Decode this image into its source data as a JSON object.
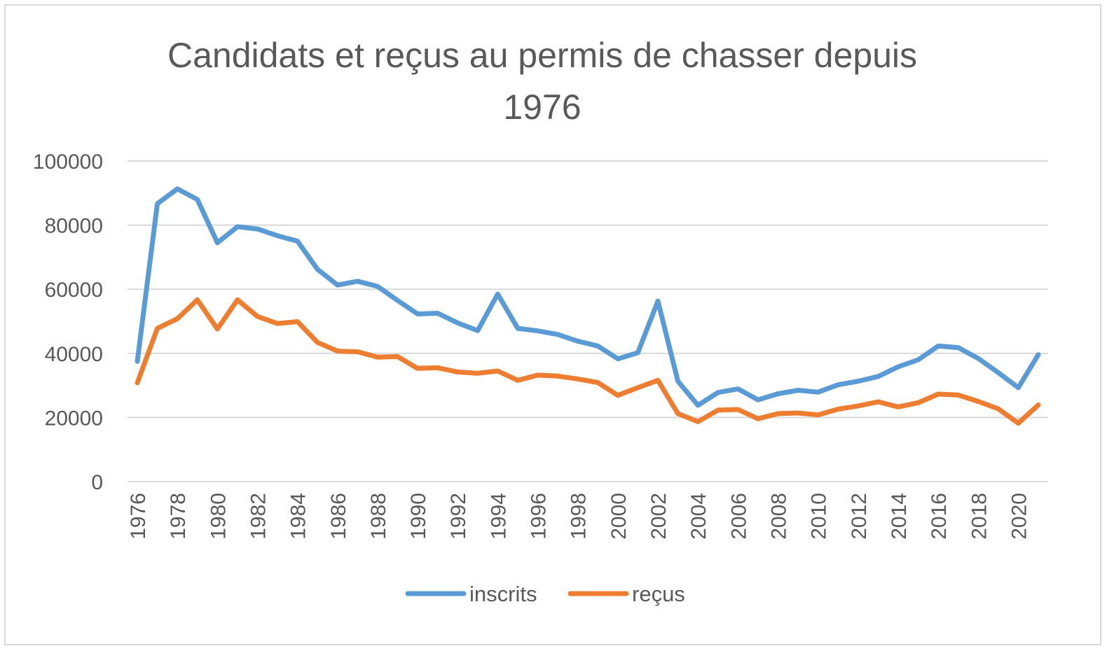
{
  "chart_data": {
    "type": "line",
    "title_lines": [
      "Candidats et reçus au permis de chasser depuis",
      "1976"
    ],
    "xlabel": "",
    "ylabel": "",
    "ylim": [
      0,
      100000
    ],
    "yticks": [
      0,
      20000,
      40000,
      60000,
      80000,
      100000
    ],
    "ytick_labels": [
      "0",
      "20000",
      "40000",
      "60000",
      "80000",
      "100000"
    ],
    "grid": true,
    "legend_position": "bottom",
    "x": [
      1976,
      1977,
      1978,
      1979,
      1980,
      1981,
      1982,
      1983,
      1984,
      1985,
      1986,
      1987,
      1988,
      1989,
      1990,
      1991,
      1992,
      1993,
      1994,
      1995,
      1996,
      1997,
      1998,
      1999,
      2000,
      2001,
      2002,
      2003,
      2004,
      2005,
      2006,
      2007,
      2008,
      2009,
      2010,
      2011,
      2012,
      2013,
      2014,
      2015,
      2016,
      2017,
      2018,
      2019,
      2020,
      2021
    ],
    "xtick_labels": [
      "1976",
      "1978",
      "1980",
      "1982",
      "1984",
      "1986",
      "1988",
      "1990",
      "1992",
      "1994",
      "1996",
      "1998",
      "2000",
      "2002",
      "2004",
      "2006",
      "2008",
      "2010",
      "2012",
      "2014",
      "2016",
      "2018",
      "2020"
    ],
    "series": [
      {
        "name": "inscrits",
        "color": "#5b9bd5",
        "values": [
          37500,
          86700,
          91300,
          88000,
          74500,
          79500,
          78800,
          76700,
          75000,
          66200,
          61300,
          62500,
          60900,
          56500,
          52300,
          52500,
          49500,
          47100,
          58500,
          47800,
          47000,
          45900,
          43800,
          42300,
          38300,
          40200,
          56300,
          31300,
          23800,
          27800,
          28900,
          25500,
          27400,
          28500,
          27900,
          30200,
          31300,
          32800,
          35800,
          38000,
          42300,
          41800,
          38400,
          34000,
          29300,
          39600
        ]
      },
      {
        "name": "reçus",
        "color": "#ed7d31",
        "values": [
          30800,
          47800,
          50800,
          56700,
          47600,
          56700,
          51500,
          49300,
          49900,
          43400,
          40700,
          40500,
          38800,
          39000,
          35300,
          35500,
          34200,
          33800,
          34500,
          31600,
          33200,
          32900,
          32000,
          30900,
          26900,
          29300,
          31600,
          21200,
          18700,
          22300,
          22500,
          19600,
          21200,
          21400,
          20800,
          22600,
          23600,
          24900,
          23300,
          24600,
          27300,
          27000,
          25000,
          22700,
          18200,
          23900
        ]
      }
    ]
  }
}
